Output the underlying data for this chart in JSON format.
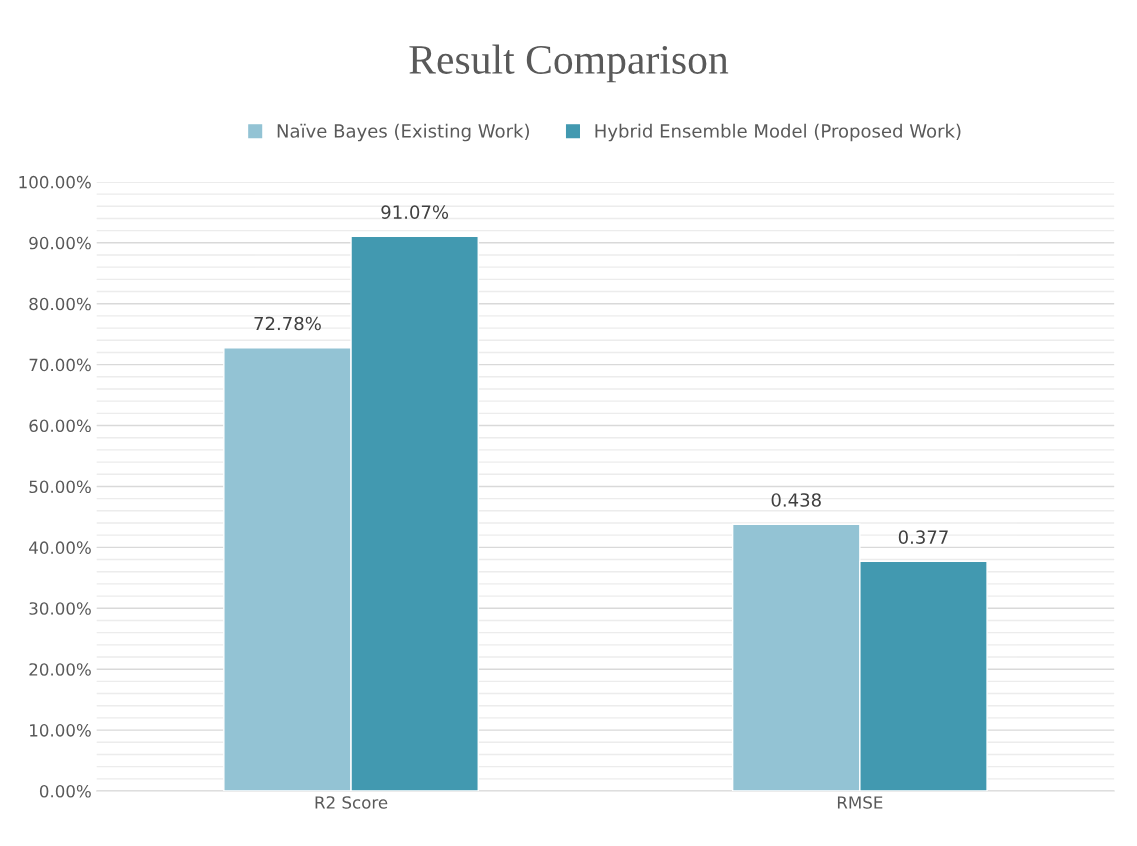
{
  "chart_data": {
    "type": "bar",
    "title": "Result Comparison",
    "categories": [
      "R2 Score",
      "RMSE"
    ],
    "series": [
      {
        "name": "Naïve Bayes (Existing Work)",
        "color": "#93c3d4",
        "values": [
          0.7278,
          0.438
        ],
        "value_labels": [
          "72.78%",
          "0.438"
        ]
      },
      {
        "name": "Hybrid Ensemble Model (Proposed Work)",
        "color": "#4299b0",
        "values": [
          0.9107,
          0.377
        ],
        "value_labels": [
          "91.07%",
          "0.377"
        ]
      }
    ],
    "ylim": [
      0,
      1
    ],
    "yticks": [
      {
        "value": 0,
        "label": "0.00%"
      },
      {
        "value": 0.02,
        "label": null
      },
      {
        "value": 0.04,
        "label": null
      },
      {
        "value": 0.06,
        "label": null
      },
      {
        "value": 0.08,
        "label": null
      },
      {
        "value": 0.1,
        "label": "10.00%"
      },
      {
        "value": 0.12,
        "label": null
      },
      {
        "value": 0.14,
        "label": null
      },
      {
        "value": 0.16,
        "label": null
      },
      {
        "value": 0.18,
        "label": null
      },
      {
        "value": 0.2,
        "label": "20.00%"
      },
      {
        "value": 0.22,
        "label": null
      },
      {
        "value": 0.24,
        "label": null
      },
      {
        "value": 0.26,
        "label": null
      },
      {
        "value": 0.28,
        "label": null
      },
      {
        "value": 0.3,
        "label": "30.00%"
      },
      {
        "value": 0.32,
        "label": null
      },
      {
        "value": 0.34,
        "label": null
      },
      {
        "value": 0.36,
        "label": null
      },
      {
        "value": 0.38,
        "label": null
      },
      {
        "value": 0.4,
        "label": "40.00%"
      },
      {
        "value": 0.42,
        "label": null
      },
      {
        "value": 0.44,
        "label": null
      },
      {
        "value": 0.46,
        "label": null
      },
      {
        "value": 0.48,
        "label": null
      },
      {
        "value": 0.5,
        "label": "50.00%"
      },
      {
        "value": 0.52,
        "label": null
      },
      {
        "value": 0.54,
        "label": null
      },
      {
        "value": 0.56,
        "label": null
      },
      {
        "value": 0.58,
        "label": null
      },
      {
        "value": 0.6,
        "label": "60.00%"
      },
      {
        "value": 0.62,
        "label": null
      },
      {
        "value": 0.64,
        "label": null
      },
      {
        "value": 0.66,
        "label": null
      },
      {
        "value": 0.68,
        "label": null
      },
      {
        "value": 0.7,
        "label": "70.00%"
      },
      {
        "value": 0.72,
        "label": null
      },
      {
        "value": 0.74,
        "label": null
      },
      {
        "value": 0.76,
        "label": null
      },
      {
        "value": 0.78,
        "label": null
      },
      {
        "value": 0.8,
        "label": "80.00%"
      },
      {
        "value": 0.82,
        "label": null
      },
      {
        "value": 0.84,
        "label": null
      },
      {
        "value": 0.86,
        "label": null
      },
      {
        "value": 0.88,
        "label": null
      },
      {
        "value": 0.9,
        "label": "90.00%"
      },
      {
        "value": 0.92,
        "label": null
      },
      {
        "value": 0.94,
        "label": null
      },
      {
        "value": 0.96,
        "label": null
      },
      {
        "value": 0.98,
        "label": null
      },
      {
        "value": 1,
        "label": "100.00%"
      }
    ],
    "grid": "y",
    "legend": "top"
  }
}
